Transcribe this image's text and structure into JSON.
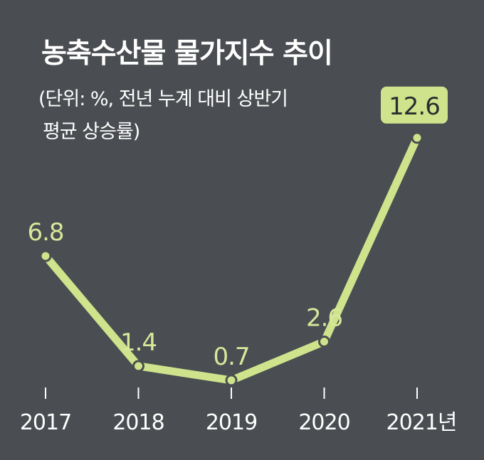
{
  "title": "농축수산물 물가지수 추이",
  "subtitle_line1": "(단위: %, 전년 누계 대비 상반기",
  "subtitle_line2": "평균 상승률)",
  "colors": {
    "background": "#4a4d51",
    "line": "#cfe38c",
    "text": "#ffffff",
    "label": "#d8e89a",
    "highlight_box": "#cfe38c",
    "highlight_text": "#2b2d2f"
  },
  "chart_data": {
    "type": "line",
    "categories": [
      "2017",
      "2018",
      "2019",
      "2020",
      "2021년"
    ],
    "values": [
      6.8,
      1.4,
      0.7,
      2.6,
      12.6
    ],
    "value_labels": [
      "6.8",
      "1.4",
      "0.7",
      "2.6",
      "12.6"
    ],
    "highlight_index": 4,
    "ylim": [
      0,
      13.5
    ],
    "grid": false,
    "legend": "none"
  }
}
